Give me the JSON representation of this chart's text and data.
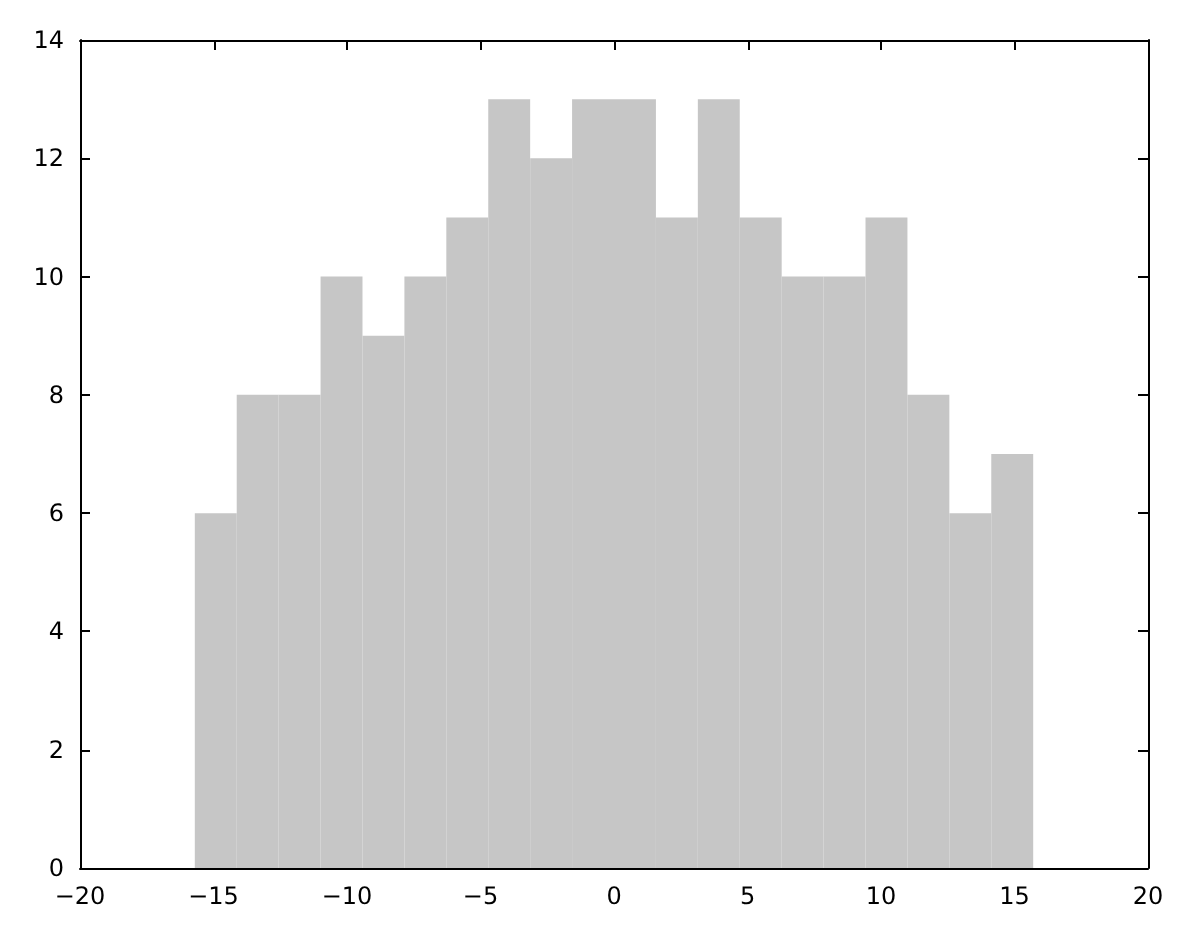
{
  "chart_data": {
    "type": "histogram",
    "bins": [
      -15.7,
      -14.13,
      -12.56,
      -10.99,
      -9.42,
      -7.85,
      -6.28,
      -4.71,
      -3.14,
      -1.57,
      0,
      1.57,
      3.14,
      4.71,
      6.28,
      7.85,
      9.42,
      10.99,
      12.56,
      14.13,
      15.7
    ],
    "values": [
      6,
      8,
      8,
      10,
      9,
      10,
      11,
      13,
      12,
      13,
      13,
      11,
      13,
      11,
      10,
      10,
      11,
      8,
      6,
      7
    ],
    "color": "#c6c6c6",
    "xlim": [
      -20,
      20
    ],
    "xticks": [
      -20,
      -15,
      -10,
      -5,
      0,
      5,
      10,
      15,
      20
    ],
    "ylim": [
      0,
      14
    ],
    "yticks": [
      0,
      2,
      4,
      6,
      8,
      10,
      12,
      14
    ],
    "grid": false
  }
}
